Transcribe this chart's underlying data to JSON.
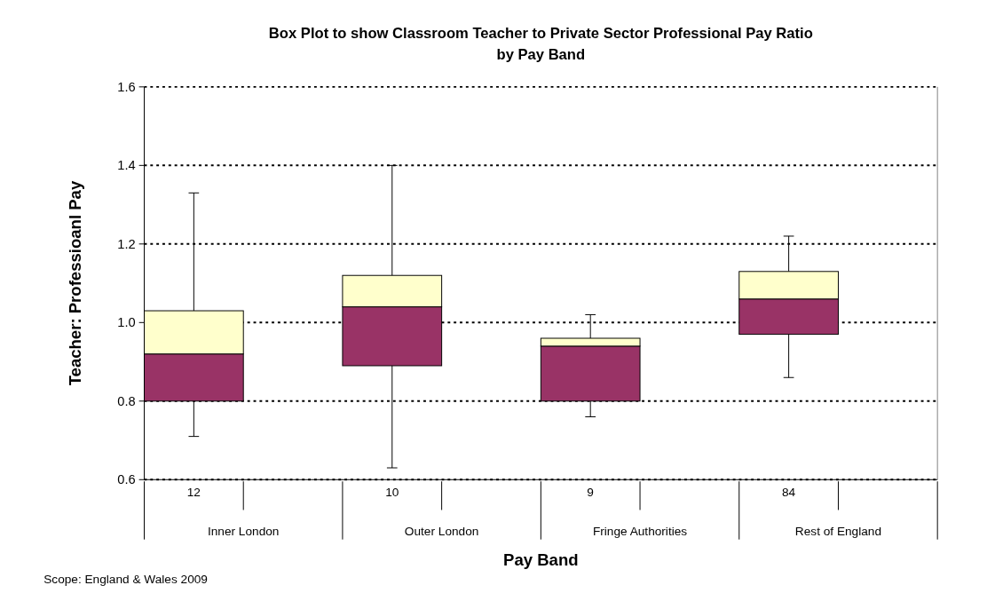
{
  "chart_data": {
    "type": "box",
    "title": "Box Plot to show Classroom Teacher to Private Sector Professional Pay Ratio\nby Pay Band",
    "xlabel": "Pay Band",
    "ylabel": "Teacher: Professioanl Pay",
    "categories": [
      "12",
      null,
      "10",
      null,
      "9",
      null,
      "84",
      null
    ],
    "boxes": [
      {
        "low": 0.71,
        "q1": 0.8,
        "median": 0.92,
        "q3": 1.03,
        "high": 1.33
      },
      null,
      {
        "low": 0.63,
        "q1": 0.89,
        "median": 1.04,
        "q3": 1.12,
        "high": 1.4
      },
      null,
      {
        "low": 0.76,
        "q1": 0.8,
        "median": 0.94,
        "q3": 0.96,
        "high": 1.02
      },
      null,
      {
        "low": 0.86,
        "q1": 0.97,
        "median": 1.06,
        "q3": 1.13,
        "high": 1.22
      },
      null
    ],
    "colors": [
      "#993366",
      null,
      "#993366",
      null,
      "#993366",
      null,
      "#993366",
      null
    ],
    "color": "#ffffcc",
    "ylim": [
      0.6,
      1.6
    ],
    "yticks": [
      {
        "value": 0.6,
        "label": "0.6"
      },
      {
        "value": 0.8,
        "label": "0.8"
      },
      {
        "value": 1.0,
        "label": "1.0"
      },
      {
        "value": 1.2,
        "label": "1.2"
      },
      {
        "value": 1.4,
        "label": "1.4"
      },
      {
        "value": 1.6,
        "label": "1.6"
      }
    ],
    "grid": "y",
    "annotations": [
      "Inner London",
      "Outer London",
      "Fringe Authorities",
      "Rest of England",
      "Scope: England & Wales 2009"
    ]
  }
}
